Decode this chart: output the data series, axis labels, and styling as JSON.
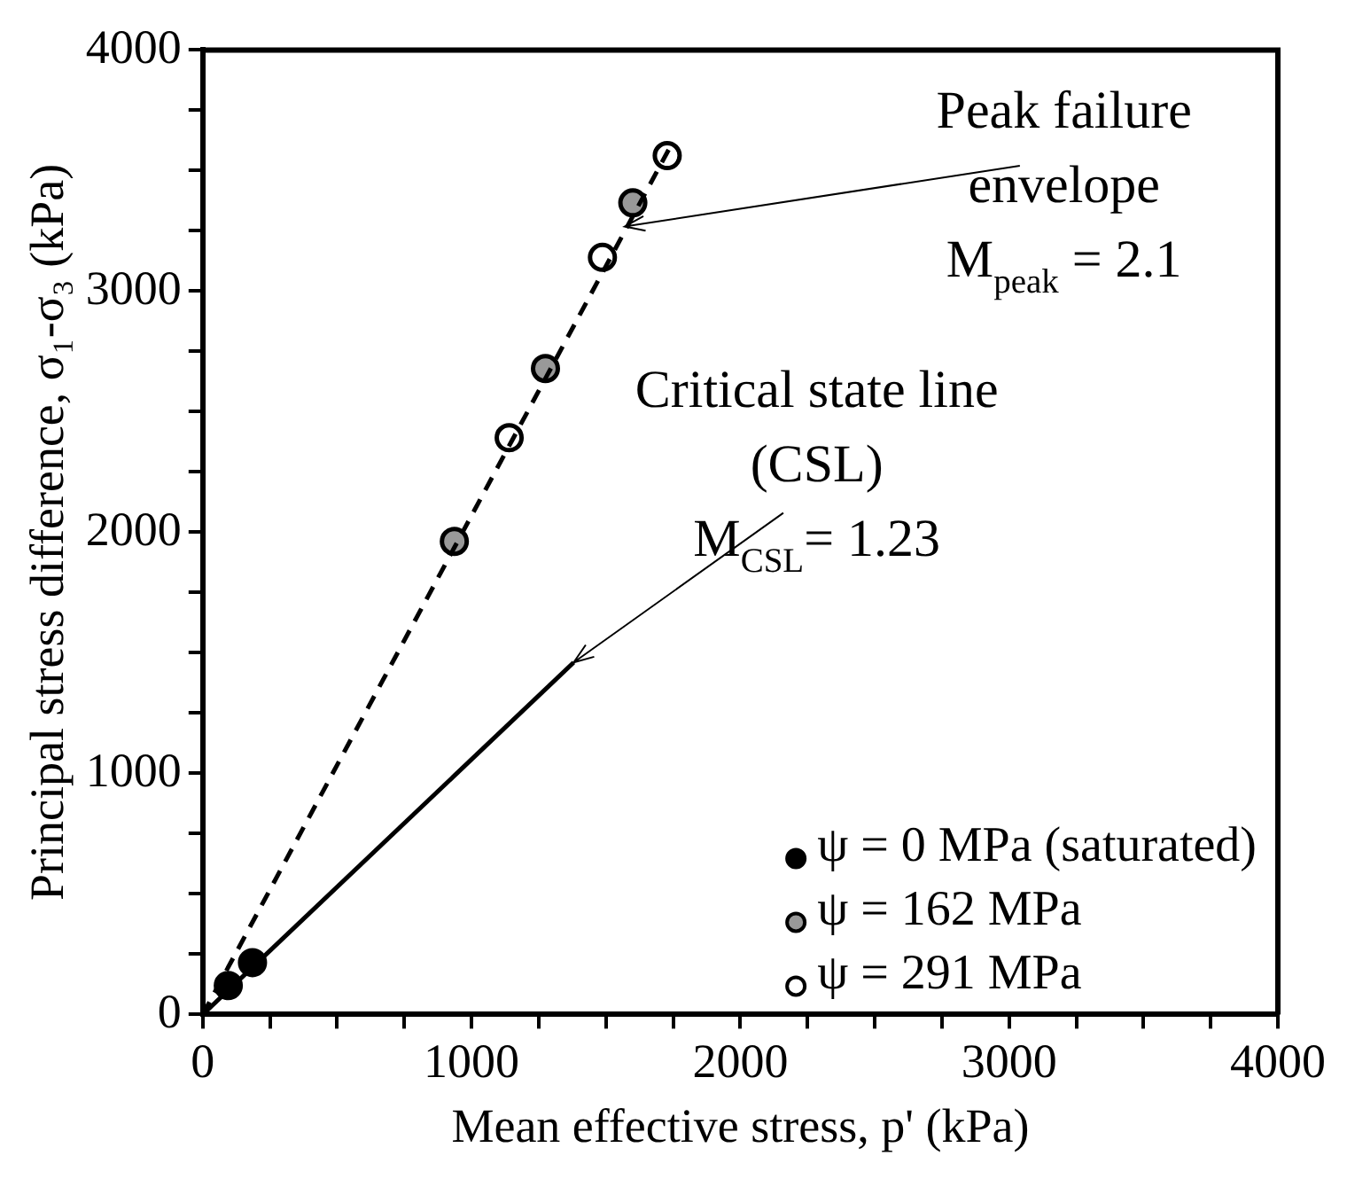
{
  "chart_data": {
    "type": "scatter",
    "xlabel": "Mean effective stress, p' (kPa)",
    "ylabel": "Principal stress difference, σ₁-σ₃ (kPa)",
    "xlim": [
      0,
      4000
    ],
    "ylim": [
      0,
      4000
    ],
    "xticks": [
      0,
      {
        "value": 250,
        "label": null
      },
      {
        "value": 500,
        "label": null
      },
      {
        "value": 750,
        "label": null
      },
      1000,
      {
        "value": 1250,
        "label": null
      },
      {
        "value": 1500,
        "label": null
      },
      {
        "value": 1750,
        "label": null
      },
      2000,
      {
        "value": 2250,
        "label": null
      },
      {
        "value": 2500,
        "label": null
      },
      {
        "value": 2750,
        "label": null
      },
      3000,
      {
        "value": 3250,
        "label": null
      },
      {
        "value": 3500,
        "label": null
      },
      {
        "value": 3750,
        "label": null
      },
      4000
    ],
    "yticks": [
      0,
      {
        "value": 250,
        "label": null
      },
      {
        "value": 500,
        "label": null
      },
      {
        "value": 750,
        "label": null
      },
      1000,
      {
        "value": 1250,
        "label": null
      },
      {
        "value": 1500,
        "label": null
      },
      {
        "value": 1750,
        "label": null
      },
      2000,
      {
        "value": 2250,
        "label": null
      },
      {
        "value": 2500,
        "label": null
      },
      {
        "value": 2750,
        "label": null
      },
      3000,
      {
        "value": 3250,
        "label": null
      },
      {
        "value": 3500,
        "label": null
      },
      {
        "value": 3750,
        "label": null
      },
      4000
    ],
    "grid": false,
    "legend": "bottom right",
    "marker": "circle",
    "series": [
      {
        "type": "line",
        "color": "#000000",
        "line_style": "dashed",
        "marker": "none",
        "x": [
          0,
          1740
        ],
        "values": [
          0,
          3600
        ]
      },
      {
        "type": "line",
        "color": "#000000",
        "line_style": "solid",
        "marker": "none",
        "x": [
          0,
          1380
        ],
        "values": [
          0,
          1460
        ]
      },
      {
        "name": "ψ = 0 MPa (saturated)",
        "color": "#000000",
        "x": [
          95,
          185
        ],
        "values": [
          120,
          215
        ]
      },
      {
        "name": "ψ = 162 MPa",
        "color": "#999999",
        "x": [
          936,
          1275,
          1600
        ],
        "values": [
          1962,
          2679,
          3366
        ]
      },
      {
        "name": "ψ = 291 MPa",
        "color": "#ffffff",
        "x": [
          1140,
          1487,
          1728
        ],
        "values": [
          2392,
          3140,
          3562
        ]
      }
    ],
    "annotations": [
      {
        "text": "Peak failure\nenvelope\nM$_{peak}$ = 2.1",
        "x": 1570,
        "y": 3268
      },
      {
        "text": "Critical state line\n(CSL)\nM$_{CSL}$= 1.23",
        "x": 1380,
        "y": 1460
      }
    ]
  }
}
